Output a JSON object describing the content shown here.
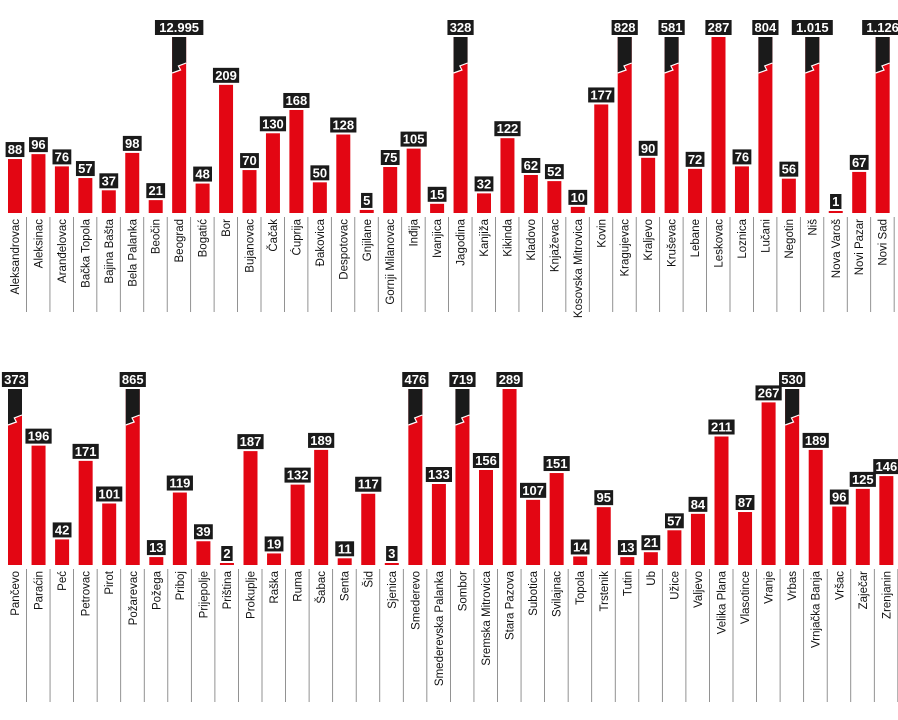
{
  "colors": {
    "bar": "#e30613",
    "label_bg": "#1a1a1a",
    "label_text": "#ffffff",
    "break_mark": "#1a1a1a",
    "separator": "#777777"
  },
  "chart_data": [
    {
      "type": "bar",
      "title": "",
      "xlabel": "",
      "ylabel": "",
      "ylim": [
        0,
        287
      ],
      "note": "values above 287 are shown with a broken (truncated) bar",
      "categories": [
        "Aleksandrovac",
        "Aleksinac",
        "Aranđelovac",
        "Bačka Topola",
        "Bajina Bašta",
        "Bela Palanka",
        "Beočin",
        "Beograd",
        "Bogatić",
        "Bor",
        "Bujanovac",
        "Čačak",
        "Ćuprija",
        "Đakovica",
        "Despotovac",
        "Gnjilane",
        "Gornji Milanovac",
        "Inđija",
        "Ivanjica",
        "Jagodina",
        "Kanjiža",
        "Kikinda",
        "Kladovo",
        "Knjaževac",
        "Kosovska Mitrovica",
        "Kovin",
        "Kragujevac",
        "Kraljevo",
        "Kruševac",
        "Lebane",
        "Leskovac",
        "Loznica",
        "Lučani",
        "Negotin",
        "Niš",
        "Nova Varoš",
        "Novi Pazar",
        "Novi Sad"
      ],
      "values": [
        88,
        96,
        76,
        57,
        37,
        98,
        21,
        12995,
        48,
        209,
        70,
        130,
        168,
        50,
        128,
        5,
        75,
        105,
        15,
        328,
        32,
        122,
        62,
        52,
        10,
        177,
        828,
        90,
        581,
        72,
        287,
        76,
        804,
        56,
        1015,
        1,
        67,
        1126
      ],
      "value_labels": [
        "88",
        "96",
        "76",
        "57",
        "37",
        "98",
        "21",
        "12.995",
        "48",
        "209",
        "70",
        "130",
        "168",
        "50",
        "128",
        "5",
        "75",
        "105",
        "15",
        "328",
        "32",
        "122",
        "62",
        "52",
        "10",
        "177",
        "828",
        "90",
        "581",
        "72",
        "287",
        "76",
        "804",
        "56",
        "1.015",
        "1",
        "67",
        "1.126"
      ]
    },
    {
      "type": "bar",
      "title": "",
      "xlabel": "",
      "ylabel": "",
      "ylim": [
        0,
        289
      ],
      "note": "values above 289 are shown with a broken (truncated) bar",
      "categories": [
        "Pančevo",
        "Paraćin",
        "Peć",
        "Petrovac",
        "Pirot",
        "Požarevac",
        "Požega",
        "Priboj",
        "Prijepolje",
        "Priština",
        "Prokuplje",
        "Raška",
        "Ruma",
        "Šabac",
        "Senta",
        "Šid",
        "Sjenica",
        "Smederevo",
        "Smederevska Palanka",
        "Sombor",
        "Sremska Mitrovica",
        "Stara Pazova",
        "Subotica",
        "Svilajnac",
        "Topola",
        "Trstenik",
        "Tutin",
        "Ub",
        "Užice",
        "Valjevo",
        "Velika Plana",
        "Vlasotince",
        "Vranje",
        "Vrbas",
        "Vrnjačka Banja",
        "Vršac",
        "Zaječar",
        "Zrenjanin"
      ],
      "values": [
        373,
        196,
        42,
        171,
        101,
        865,
        13,
        119,
        39,
        2,
        187,
        19,
        132,
        189,
        11,
        117,
        3,
        476,
        133,
        719,
        156,
        289,
        107,
        151,
        14,
        95,
        13,
        21,
        57,
        84,
        211,
        87,
        267,
        530,
        189,
        96,
        125,
        146
      ],
      "value_labels": [
        "373",
        "196",
        "42",
        "171",
        "101",
        "865",
        "13",
        "119",
        "39",
        "2",
        "187",
        "19",
        "132",
        "189",
        "11",
        "117",
        "3",
        "476",
        "133",
        "719",
        "156",
        "289",
        "107",
        "151",
        "14",
        "95",
        "13",
        "21",
        "57",
        "84",
        "211",
        "87",
        "267",
        "530",
        "189",
        "96",
        "125",
        "146"
      ]
    }
  ]
}
